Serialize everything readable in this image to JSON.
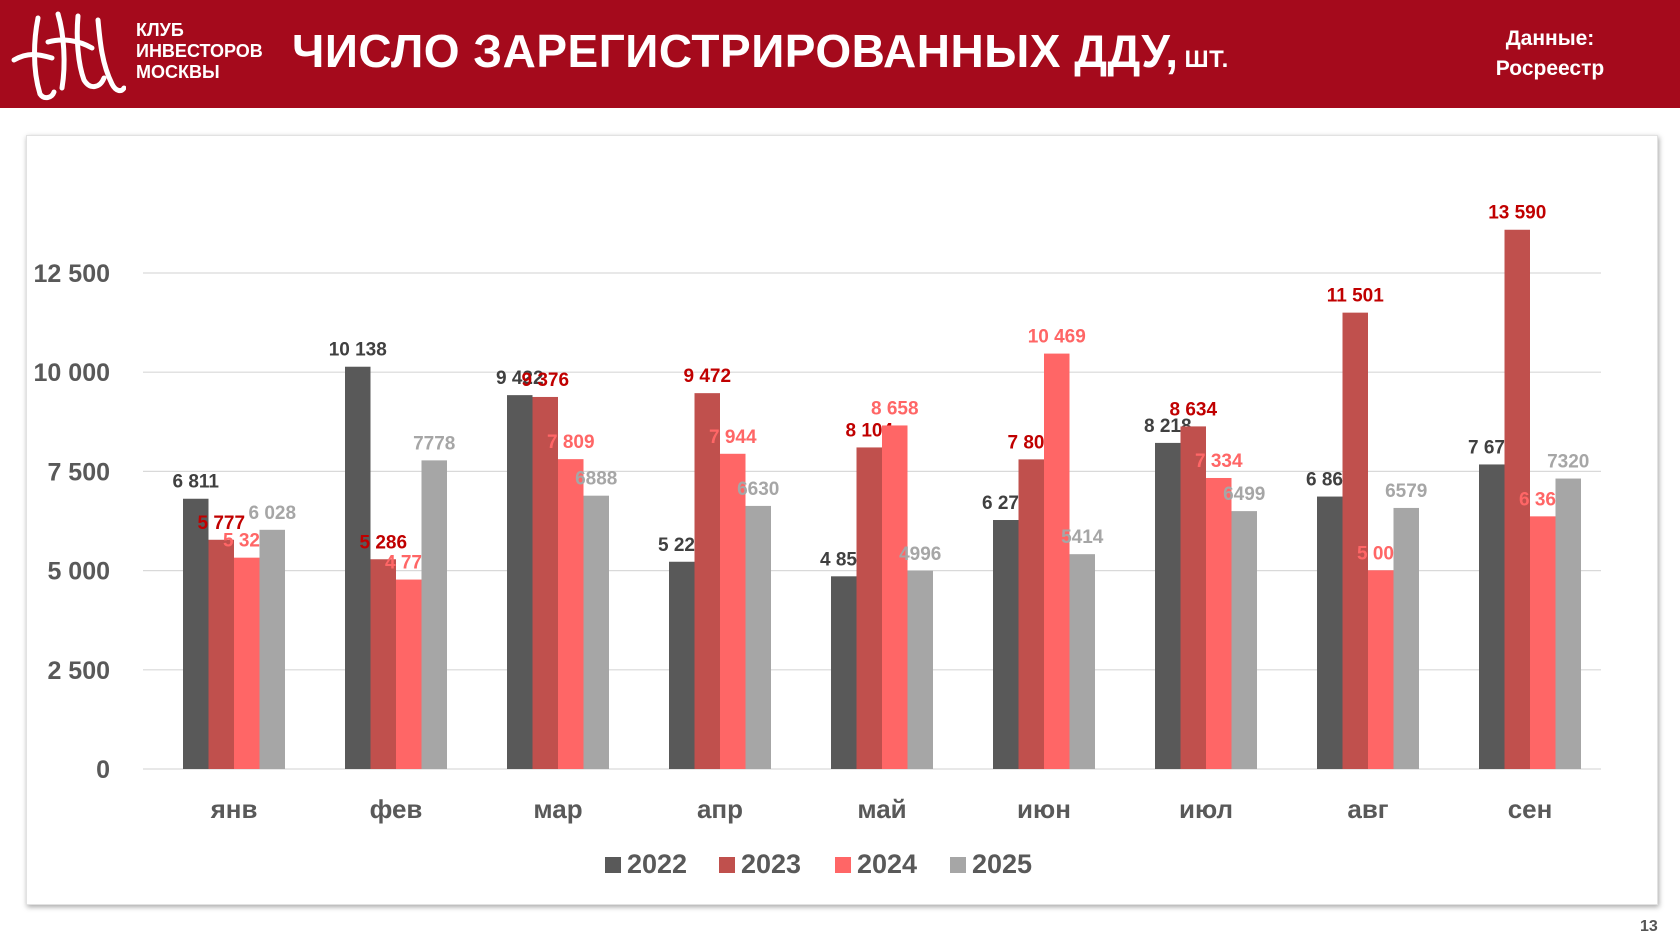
{
  "header": {
    "logo_lines": [
      "КЛУБ",
      "ИНВЕСТОРОВ",
      "МОСКВЫ"
    ],
    "title": "ЧИСЛО ЗАРЕГИСТРИРОВАННЫХ ДДУ,",
    "title_unit": "ШТ.",
    "source_label": "Данные:",
    "source_value": "Росреестр"
  },
  "page_number": "13",
  "colors": {
    "header_bg": "#a50a1c",
    "series_2022": "#595959",
    "series_2023": "#c0504d",
    "series_2024": "#ff6666",
    "series_2025": "#a6a6a6",
    "label_2022": "#404040",
    "label_2023": "#c00000",
    "label_2024": "#ff6666",
    "label_2025": "#a6a6a6"
  },
  "chart_data": {
    "type": "bar",
    "categories": [
      "янв",
      "фев",
      "мар",
      "апр",
      "май",
      "июн",
      "июл",
      "авг",
      "сен"
    ],
    "series": [
      {
        "name": "2022",
        "values": [
          6811,
          10138,
          9422,
          5223,
          4856,
          6275,
          8218,
          6866,
          7675
        ],
        "labels": [
          "6 811",
          "10 138",
          "9 422",
          "5 223",
          "4 856",
          "6 275",
          "8 218",
          "6 866",
          "7 675"
        ]
      },
      {
        "name": "2023",
        "values": [
          5777,
          5286,
          9376,
          9472,
          8104,
          7803,
          8634,
          11501,
          13590
        ],
        "labels": [
          "5 777",
          "5 286",
          "9 376",
          "9 472",
          "8 104",
          "7 803",
          "8 634",
          "11 501",
          "13 590"
        ]
      },
      {
        "name": "2024",
        "values": [
          5326,
          4774,
          7809,
          7944,
          8658,
          10469,
          7334,
          5008,
          6367
        ],
        "labels": [
          "5 326",
          "4 774",
          "7 809",
          "7 944",
          "8 658",
          "10 469",
          "7 334",
          "5 008",
          "6 367"
        ]
      },
      {
        "name": "2025",
        "values": [
          6028,
          7778,
          6888,
          6630,
          4996,
          5414,
          6499,
          6579,
          7320
        ],
        "labels": [
          "6 028",
          "7778",
          "6888",
          "6630",
          "4996",
          "5414",
          "6499",
          "6579",
          "7320"
        ]
      }
    ],
    "y_ticks": [
      {
        "value": 0,
        "label": "0"
      },
      {
        "value": 2500,
        "label": "2 500"
      },
      {
        "value": 5000,
        "label": "5 000"
      },
      {
        "value": 7500,
        "label": "7 500"
      },
      {
        "value": 10000,
        "label": "10 000"
      },
      {
        "value": 12500,
        "label": "12 500"
      }
    ],
    "ylim": [
      0,
      15000
    ],
    "grid": true,
    "legend_position": "bottom"
  }
}
